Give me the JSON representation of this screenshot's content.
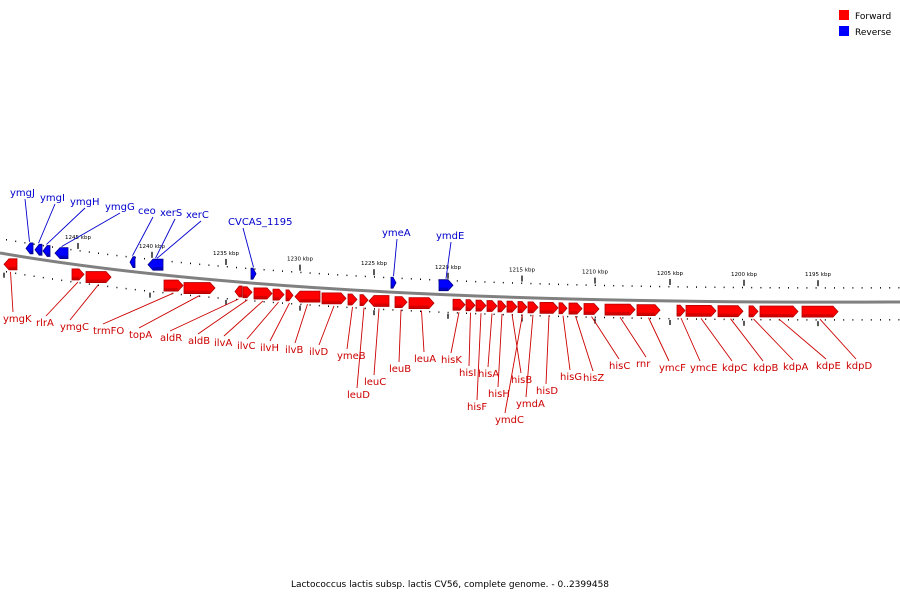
{
  "caption": "Lactococcus lactis subsp. lactis CV56, complete genome. - 0..2399458",
  "legend": [
    {
      "label": "Forward",
      "color": "#ff0000"
    },
    {
      "label": "Reverse",
      "color": "#0000ff"
    }
  ],
  "colors": {
    "forward": "#ff0000",
    "forward_dark": "#b00000",
    "reverse": "#0000ff",
    "reverse_dark": "#00008a",
    "forward_label": "#cc0000",
    "reverse_label": "#0000cc",
    "backbone": "#808080"
  },
  "scale_labels": [
    "1245 kbp",
    "1240 kbp",
    "1235 kbp",
    "1230 kbp",
    "1225 kbp",
    "1220 kbp",
    "1215 kbp",
    "1210 kbp",
    "1205 kbp",
    "1200 kbp",
    "1195 kbp"
  ],
  "reverse_genes": [
    "ymgJ",
    "ymgI",
    "ymgH",
    "ymgG",
    "ceo",
    "xerS",
    "xerC",
    "CVCAS_1195",
    "ymeA",
    "ymdE"
  ],
  "forward_genes": [
    "ymgK",
    "rlrA",
    "ymgC",
    "trmFO",
    "topA",
    "aldR",
    "aldB",
    "ilvA",
    "ilvC",
    "ilvH",
    "ilvB",
    "ilvD",
    "ymeB",
    "leuD",
    "leuC",
    "leuB",
    "leuA",
    "hisK",
    "hisI",
    "hisF",
    "hisA",
    "hisH",
    "hisB",
    "ymdC",
    "ymdA",
    "hisD",
    "hisG",
    "hisZ",
    "hisC",
    "rnr",
    "ymcF",
    "ymcE",
    "kdpC",
    "kdpB",
    "kdpA",
    "kdpE",
    "kdpD"
  ]
}
